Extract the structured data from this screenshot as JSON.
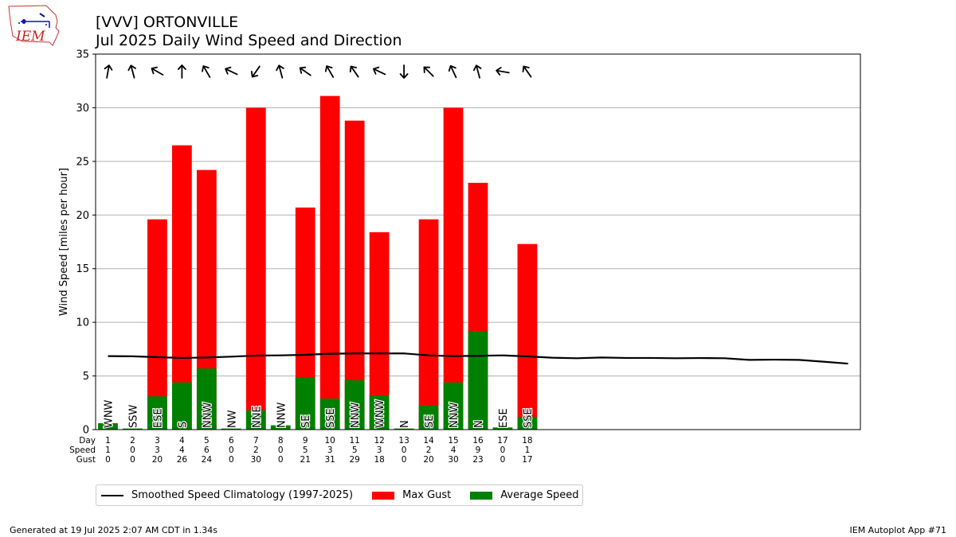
{
  "header": {
    "title": "[VVV] ORTONVILLE",
    "subtitle": "Jul 2025 Daily Wind Speed and Direction",
    "logo_text": "IEM"
  },
  "legend": {
    "items": [
      {
        "label": "Smoothed Speed Climatology (1997-2025)",
        "kind": "line",
        "color": "#000000"
      },
      {
        "label": "Max Gust",
        "kind": "box",
        "color": "#ff0000"
      },
      {
        "label": "Average Speed",
        "kind": "box",
        "color": "#008000"
      }
    ]
  },
  "footer": {
    "left": "Generated at 19 Jul 2025 2:07 AM CDT in 1.34s",
    "right": "IEM Autoplot App #71"
  },
  "chart_data": {
    "type": "bar",
    "ylabel": "Wind Speed [miles per hour]",
    "ylim": [
      0,
      35
    ],
    "xlim": [
      0.5,
      31.5
    ],
    "yticks": [
      0,
      5,
      10,
      15,
      20,
      25,
      30,
      35
    ],
    "grid": "y",
    "row_labels": [
      "Day",
      "Speed",
      "Gust"
    ],
    "days": [
      1,
      2,
      3,
      4,
      5,
      6,
      7,
      8,
      9,
      10,
      11,
      12,
      13,
      14,
      15,
      16,
      17,
      18
    ],
    "avg_speed": [
      0.6,
      0.1,
      3.1,
      4.4,
      5.7,
      0.1,
      1.8,
      0.4,
      4.9,
      2.9,
      4.6,
      3.2,
      0.1,
      2.3,
      4.4,
      9.2,
      0.2,
      1.2
    ],
    "max_gust": [
      0,
      0,
      19.6,
      26.5,
      24.2,
      0,
      30.0,
      0,
      20.7,
      31.1,
      28.8,
      18.4,
      0,
      19.6,
      30.0,
      23.0,
      0,
      17.3
    ],
    "speed_labels": [
      "1",
      "0",
      "3",
      "4",
      "6",
      "0",
      "2",
      "0",
      "5",
      "3",
      "5",
      "3",
      "0",
      "2",
      "4",
      "9",
      "0",
      "1"
    ],
    "gust_labels": [
      "0",
      "0",
      "20",
      "26",
      "24",
      "0",
      "30",
      "0",
      "21",
      "31",
      "29",
      "18",
      "0",
      "20",
      "30",
      "23",
      "0",
      "17"
    ],
    "directions": [
      "WNW",
      "SSW",
      "ESE",
      "S",
      "NNW",
      "NW",
      "NNE",
      "NNW",
      "SE",
      "SSE",
      "NNW",
      "WNW",
      "N",
      "SE",
      "NNW",
      "N",
      "ESE",
      "SSE"
    ],
    "arrow_angles": [
      10,
      -15,
      -60,
      0,
      -30,
      -65,
      -145,
      -15,
      -55,
      -30,
      -35,
      -65,
      180,
      -45,
      -25,
      -15,
      -80,
      -35
    ],
    "climatology": {
      "x": [
        1,
        2,
        3,
        4,
        5,
        6,
        7,
        8,
        9,
        10,
        11,
        12,
        13,
        14,
        15,
        16,
        17,
        18,
        19,
        20,
        21,
        22,
        23,
        24,
        25,
        26,
        27,
        28,
        29,
        30,
        31
      ],
      "y": [
        6.85,
        6.83,
        6.75,
        6.68,
        6.72,
        6.8,
        6.9,
        6.92,
        6.97,
        7.07,
        7.1,
        7.1,
        7.1,
        6.92,
        6.85,
        6.88,
        6.92,
        6.82,
        6.7,
        6.65,
        6.72,
        6.68,
        6.68,
        6.65,
        6.67,
        6.65,
        6.5,
        6.52,
        6.5,
        6.33,
        6.15
      ]
    },
    "colors": {
      "avg": "#008000",
      "gust": "#ff0000",
      "climo": "#000000",
      "grid": "#b0b0b0"
    }
  }
}
